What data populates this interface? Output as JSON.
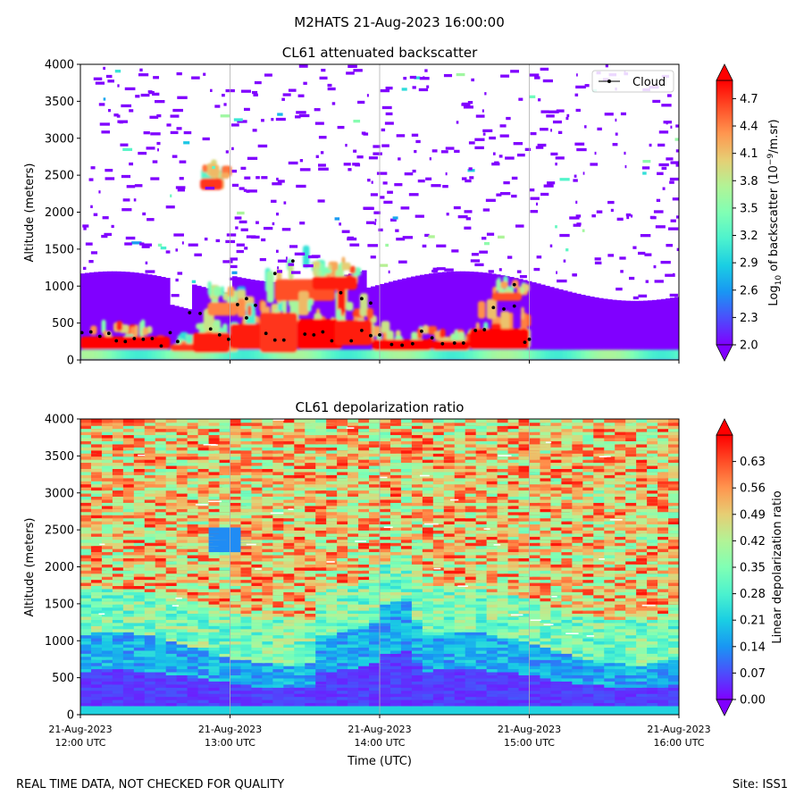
{
  "figure": {
    "suptitle": "M2HATS 21-Aug-2023 16:00:00",
    "footer_left": "REAL TIME DATA, NOT CHECKED FOR QUALITY",
    "footer_right": "Site: ISS1"
  },
  "chart_data": [
    {
      "type": "heatmap",
      "title": "CL61 attenuated backscatter",
      "xlabel": "",
      "ylabel": "Altitude (meters)",
      "ylim": [
        0,
        4000
      ],
      "y_ticks": [
        0,
        500,
        1000,
        1500,
        2000,
        2500,
        3000,
        3500,
        4000
      ],
      "x_range_hours": [
        12,
        16
      ],
      "x_ticks_hours": [
        12,
        13,
        14,
        15,
        16
      ],
      "x_tick_labels": [
        [
          "21-Aug-2023",
          "12:00 UTC"
        ],
        [
          "21-Aug-2023",
          "13:00 UTC"
        ],
        [
          "21-Aug-2023",
          "14:00 UTC"
        ],
        [
          "21-Aug-2023",
          "15:00 UTC"
        ],
        [
          "21-Aug-2023",
          "16:00 UTC"
        ]
      ],
      "show_x_tick_labels": false,
      "grid_x": true,
      "legend": {
        "label": "Cloud",
        "placement": "top-right"
      },
      "colorbar": {
        "label_prefix": "Log",
        "label_sub": "10",
        "label_mid": " of backscatter (10",
        "label_sup": "−9",
        "label_suffix": "/m.sr)",
        "vmin": 2.0,
        "vmax": 4.9,
        "ticks": [
          2.0,
          2.3,
          2.6,
          2.9,
          3.2,
          3.5,
          3.8,
          4.1,
          4.4,
          4.7
        ],
        "tick_labels": [
          "2.0",
          "2.3",
          "2.6",
          "2.9",
          "3.2",
          "3.5",
          "3.8",
          "4.1",
          "4.4",
          "4.7"
        ],
        "extend": "both"
      },
      "cloud_base_points": [
        [
          12.01,
          370
        ],
        [
          12.07,
          380
        ],
        [
          12.13,
          320
        ],
        [
          12.19,
          360
        ],
        [
          12.24,
          260
        ],
        [
          12.3,
          250
        ],
        [
          12.36,
          290
        ],
        [
          12.42,
          280
        ],
        [
          12.48,
          290
        ],
        [
          12.54,
          190
        ],
        [
          12.6,
          370
        ],
        [
          12.65,
          250
        ],
        [
          12.73,
          640
        ],
        [
          12.8,
          630
        ],
        [
          12.87,
          420
        ],
        [
          12.93,
          340
        ],
        [
          12.99,
          280
        ],
        [
          13.05,
          750
        ],
        [
          13.11,
          830
        ],
        [
          13.11,
          570
        ],
        [
          13.17,
          740
        ],
        [
          13.24,
          360
        ],
        [
          13.3,
          1170
        ],
        [
          13.3,
          270
        ],
        [
          13.36,
          270
        ],
        [
          13.42,
          1340
        ],
        [
          13.5,
          350
        ],
        [
          13.56,
          340
        ],
        [
          13.62,
          380
        ],
        [
          13.68,
          260
        ],
        [
          13.74,
          910
        ],
        [
          13.81,
          260
        ],
        [
          13.88,
          830
        ],
        [
          13.88,
          400
        ],
        [
          13.94,
          770
        ],
        [
          13.94,
          330
        ],
        [
          14.0,
          340
        ],
        [
          14.08,
          210
        ],
        [
          14.15,
          200
        ],
        [
          14.22,
          220
        ],
        [
          14.28,
          390
        ],
        [
          14.35,
          300
        ],
        [
          14.42,
          220
        ],
        [
          14.5,
          230
        ],
        [
          14.56,
          230
        ],
        [
          14.64,
          400
        ],
        [
          14.7,
          410
        ],
        [
          14.76,
          710
        ],
        [
          14.83,
          690
        ],
        [
          14.9,
          1020
        ],
        [
          14.9,
          730
        ],
        [
          14.97,
          240
        ],
        [
          15.0,
          280
        ]
      ]
    },
    {
      "type": "heatmap",
      "title": "CL61 depolarization ratio",
      "xlabel": "Time (UTC)",
      "ylabel": "Altitude (meters)",
      "ylim": [
        0,
        4000
      ],
      "y_ticks": [
        0,
        500,
        1000,
        1500,
        2000,
        2500,
        3000,
        3500,
        4000
      ],
      "x_range_hours": [
        12,
        16
      ],
      "x_ticks_hours": [
        12,
        13,
        14,
        15,
        16
      ],
      "x_tick_labels": [
        [
          "21-Aug-2023",
          "12:00 UTC"
        ],
        [
          "21-Aug-2023",
          "13:00 UTC"
        ],
        [
          "21-Aug-2023",
          "14:00 UTC"
        ],
        [
          "21-Aug-2023",
          "15:00 UTC"
        ],
        [
          "21-Aug-2023",
          "16:00 UTC"
        ]
      ],
      "show_x_tick_labels": true,
      "grid_x": true,
      "colorbar": {
        "label": "Linear depolarization ratio",
        "vmin": 0.0,
        "vmax": 0.7,
        "ticks": [
          0.0,
          0.07,
          0.14,
          0.21,
          0.28,
          0.35,
          0.42,
          0.49,
          0.56,
          0.63
        ],
        "tick_labels": [
          "0.00",
          "0.07",
          "0.14",
          "0.21",
          "0.28",
          "0.35",
          "0.42",
          "0.49",
          "0.56",
          "0.63"
        ],
        "extend": "both"
      }
    }
  ]
}
